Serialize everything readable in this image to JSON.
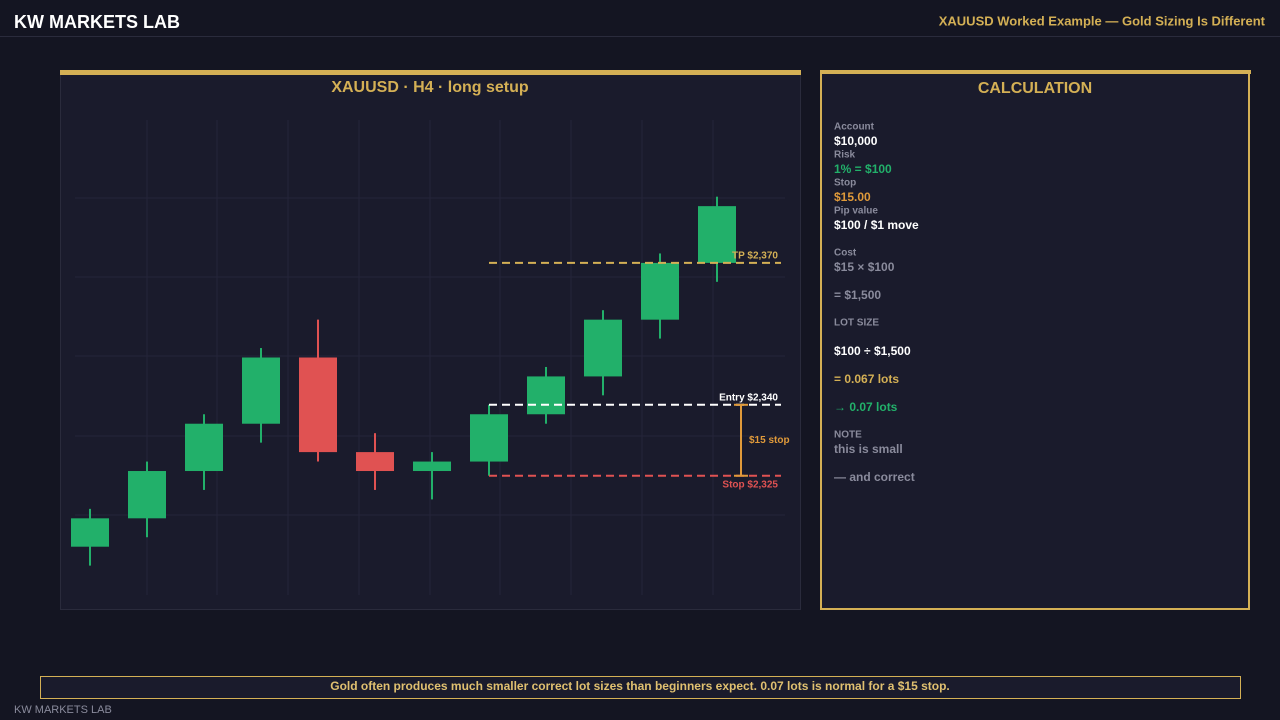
{
  "header": {
    "brand": "KW MARKETS LAB",
    "title": "XAUUSD Worked Example — Gold Sizing Is Different"
  },
  "chart_data": {
    "type": "candlestick",
    "title": "XAUUSD · H4 · long setup",
    "ylim": [
      2300,
      2400
    ],
    "up_color": "#22b06a",
    "down_color": "#e05252",
    "open": [
      2310,
      2316,
      2326,
      2336,
      2350,
      2330,
      2326,
      2328,
      2338,
      2346,
      2358,
      2370
    ],
    "high": [
      2318,
      2328,
      2338,
      2352,
      2358,
      2334,
      2330,
      2340,
      2348,
      2360,
      2372,
      2384
    ],
    "low": [
      2306,
      2312,
      2322,
      2332,
      2328,
      2322,
      2320,
      2325,
      2336,
      2342,
      2354,
      2366
    ],
    "close": [
      2316,
      2326,
      2336,
      2350,
      2330,
      2326,
      2328,
      2338,
      2346,
      2358,
      2370,
      2382
    ],
    "levels": [
      {
        "value": 2370,
        "label": "TP $2,370",
        "color": "#d4b055"
      },
      {
        "value": 2340,
        "label": "Entry $2,340",
        "color": "#ffffff"
      },
      {
        "value": 2325,
        "label": "Stop $2,325",
        "color": "#e05252"
      }
    ],
    "stop_annotation": {
      "label": "$15 stop",
      "color": "#e09a3a"
    }
  },
  "calculation": {
    "title": "CALCULATION",
    "lines": [
      {
        "text": "Account",
        "style": "label"
      },
      {
        "text": "$10,000",
        "style": "white"
      },
      {
        "text": "Risk",
        "style": "label"
      },
      {
        "text": "1% = $100",
        "style": "green"
      },
      {
        "text": "Stop",
        "style": "label"
      },
      {
        "text": "$15.00",
        "style": "orange"
      },
      {
        "text": "Pip value",
        "style": "label"
      },
      {
        "text": "$100 / $1 move",
        "style": "white"
      },
      {
        "text": "Cost",
        "style": "label"
      },
      {
        "text": "$15 × $100",
        "style": "gray"
      },
      {
        "text": "= $1,500",
        "style": "gray"
      },
      {
        "text": "LOT SIZE",
        "style": "label"
      },
      {
        "text": "$100 ÷ $1,500",
        "style": "white"
      },
      {
        "text": "= 0.067 lots",
        "style": "gold"
      },
      {
        "text": "→ 0.07 lots",
        "style": "green"
      },
      {
        "text": "NOTE",
        "style": "label"
      },
      {
        "text": "this is small",
        "style": "gray"
      },
      {
        "text": "— and correct",
        "style": "gray"
      }
    ]
  },
  "footer": {
    "note": "Gold often produces much smaller correct lot sizes than beginners expect. 0.07 lots is normal for a $15 stop.",
    "brand": "KW MARKETS LAB"
  }
}
